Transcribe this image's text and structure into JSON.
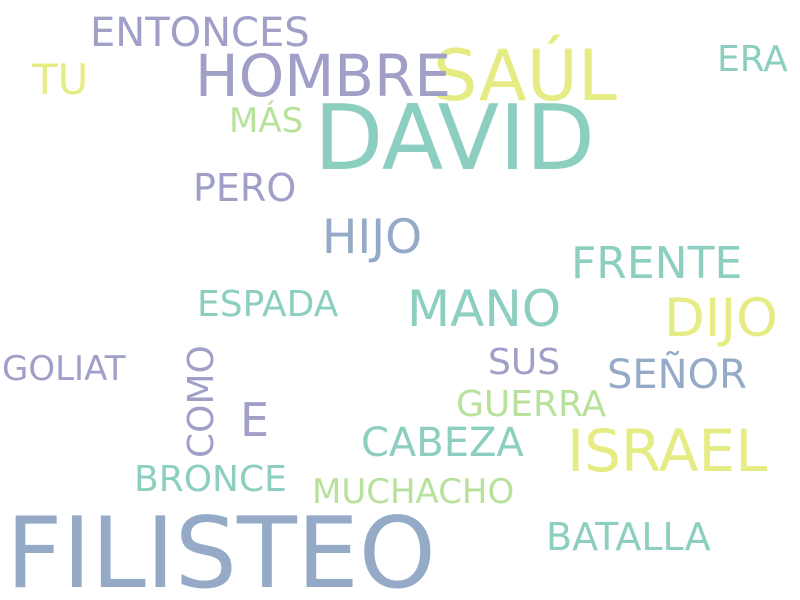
{
  "palette": {
    "lavender": "#a09fc8",
    "teal": "#8ccfc0",
    "yellow": "#e6ec84",
    "steel_blue": "#95aac6",
    "light_green": "#b8e29c"
  },
  "words": [
    {
      "text": "FILISTEO",
      "color": "#95aac6"
    },
    {
      "text": "DAVID",
      "color": "#8ccfc0"
    },
    {
      "text": "SAÚL",
      "color": "#e6ec84"
    },
    {
      "text": "HOMBRE",
      "color": "#a09fc8"
    },
    {
      "text": "ISRAEL",
      "color": "#e6ec84"
    },
    {
      "text": "DIJO",
      "color": "#e6ec84"
    },
    {
      "text": "MANO",
      "color": "#8ccfc0"
    },
    {
      "text": "ENTONCES",
      "color": "#a09fc8"
    },
    {
      "text": "TU",
      "color": "#e6ec84"
    },
    {
      "text": "ERA",
      "color": "#8ccfc0"
    },
    {
      "text": "MÁS",
      "color": "#b8e29c"
    },
    {
      "text": "PERO",
      "color": "#a09fc8"
    },
    {
      "text": "HIJO",
      "color": "#95aac6"
    },
    {
      "text": "FRENTE",
      "color": "#8ccfc0"
    },
    {
      "text": "ESPADA",
      "color": "#8ccfc0"
    },
    {
      "text": "GOLIAT",
      "color": "#a09fc8"
    },
    {
      "text": "SUS",
      "color": "#a09fc8"
    },
    {
      "text": "SEÑOR",
      "color": "#95aac6"
    },
    {
      "text": "COMO",
      "color": "#a09fc8"
    },
    {
      "text": "E",
      "color": "#a09fc8"
    },
    {
      "text": "GUERRA",
      "color": "#b8e29c"
    },
    {
      "text": "CABEZA",
      "color": "#8ccfc0"
    },
    {
      "text": "BRONCE",
      "color": "#8ccfc0"
    },
    {
      "text": "MUCHACHO",
      "color": "#b8e29c"
    },
    {
      "text": "BATALLA",
      "color": "#8ccfc0"
    }
  ]
}
